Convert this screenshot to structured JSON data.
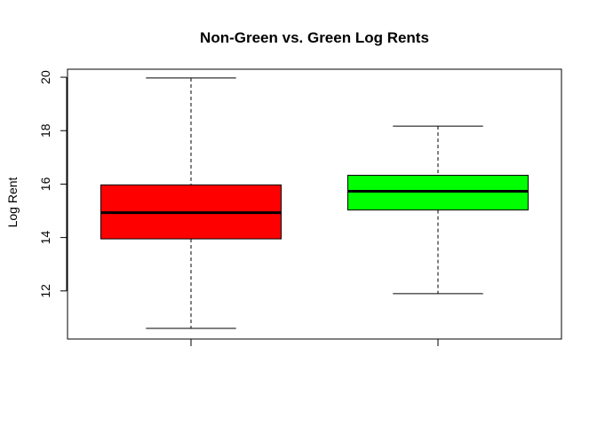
{
  "chart_data": {
    "type": "boxplot",
    "title": "Non-Green vs. Green Log Rents",
    "xlabel": "",
    "ylabel": "Log Rent",
    "ylim": [
      10.2,
      20.3
    ],
    "yticks": [
      12,
      14,
      16,
      18,
      20
    ],
    "grid": false,
    "legend": "none",
    "boxes": [
      {
        "min": 10.6,
        "q1": 13.95,
        "median": 14.93,
        "q3": 15.97,
        "max": 19.97,
        "color": "#ff0000"
      },
      {
        "min": 11.9,
        "q1": 15.03,
        "median": 15.73,
        "q3": 16.33,
        "max": 18.17,
        "color": "#00ff00"
      }
    ]
  }
}
